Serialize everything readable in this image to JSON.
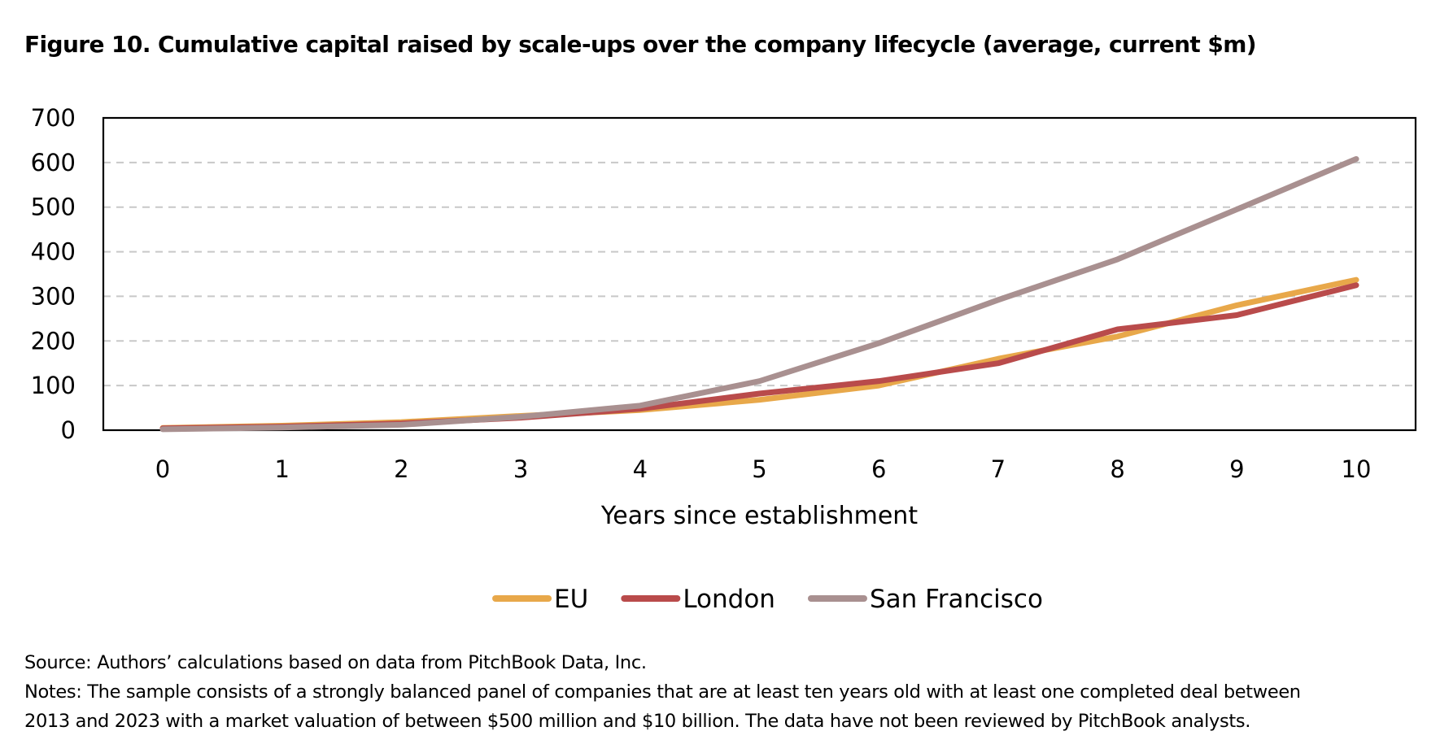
{
  "figure": {
    "title": "Figure 10. Cumulative capital raised by scale-ups over the company lifecycle (average, current $m)"
  },
  "chart_data": {
    "type": "line",
    "title": "",
    "xlabel": "Years since establishment",
    "ylabel": "",
    "x": [
      0,
      1,
      2,
      3,
      4,
      5,
      6,
      7,
      8,
      9,
      10
    ],
    "ylim": [
      0,
      700
    ],
    "yticks": [
      0,
      100,
      200,
      300,
      400,
      500,
      600,
      700
    ],
    "grid": true,
    "legend_position": "bottom",
    "series": [
      {
        "name": "EU",
        "color": "#E8A84A",
        "values": [
          5,
          10,
          18,
          32,
          45,
          68,
          100,
          160,
          210,
          280,
          337
        ]
      },
      {
        "name": "London",
        "color": "#B94B4B",
        "values": [
          4,
          8,
          15,
          28,
          48,
          82,
          110,
          150,
          226,
          258,
          325
        ]
      },
      {
        "name": "San Francisco",
        "color": "#A99090",
        "values": [
          2,
          6,
          12,
          30,
          55,
          110,
          195,
          292,
          383,
          495,
          608
        ]
      }
    ]
  },
  "notes": {
    "source": "Source: Authors’ calculations based on data from PitchBook Data, Inc.",
    "notes_line1": "Notes: The sample consists of a strongly balanced panel of companies that are at least ten years old with at least one completed deal between",
    "notes_line2": "2013 and 2023 with a market valuation of between $500 million and $10 billion. The data have not been reviewed by PitchBook analysts."
  }
}
